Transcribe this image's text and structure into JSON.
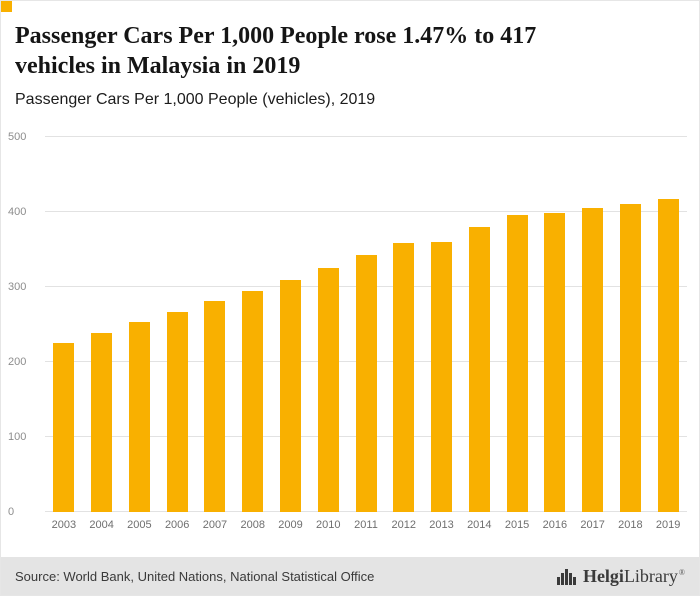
{
  "colors": {
    "accent": "#F9B000",
    "gridline": "#e2e2e2",
    "footer_bg": "#e4e4e4"
  },
  "header": {
    "title_line1": "Passenger Cars Per 1,000 People rose 1.47% to 417",
    "title_line2": "vehicles in Malaysia in 2019",
    "subtitle": "Passenger Cars Per 1,000 People (vehicles), 2019"
  },
  "chart_data": {
    "type": "bar",
    "title": "Passenger Cars Per 1,000 People (vehicles), 2019",
    "categories": [
      "2003",
      "2004",
      "2005",
      "2006",
      "2007",
      "2008",
      "2009",
      "2010",
      "2011",
      "2012",
      "2013",
      "2014",
      "2015",
      "2016",
      "2017",
      "2018",
      "2019"
    ],
    "values": [
      225,
      238,
      253,
      267,
      281,
      295,
      309,
      325,
      343,
      358,
      360,
      380,
      396,
      398,
      405,
      411,
      417
    ],
    "xlabel": "",
    "ylabel": "",
    "ylim": [
      0,
      500
    ],
    "yticks": [
      0,
      100,
      200,
      300,
      400,
      500
    ],
    "bar_color": "#F9B000",
    "grid": true,
    "legend": false
  },
  "footer": {
    "source": "Source: World Bank, United Nations, National Statistical Office",
    "logo_bold": "Helgi",
    "logo_regular": "Library",
    "logo_mark": "®"
  }
}
